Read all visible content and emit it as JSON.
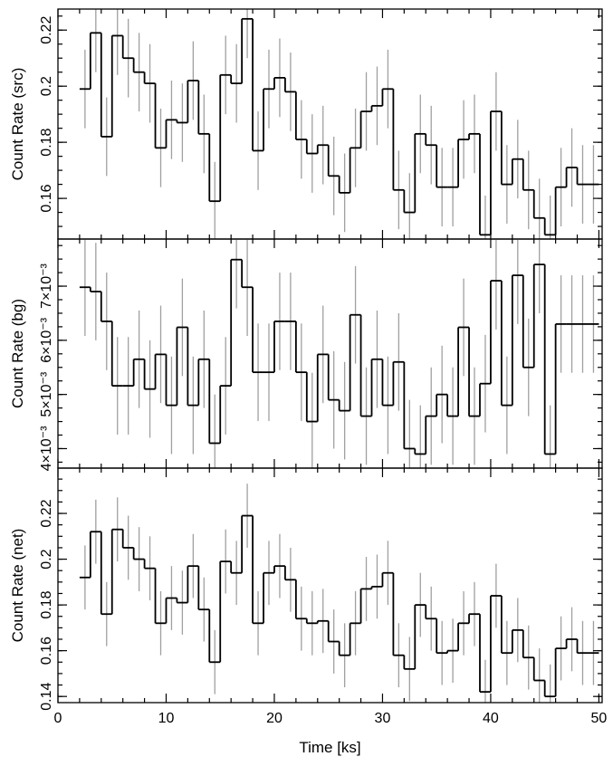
{
  "chart_data": {
    "type": "line",
    "style": "step-histogram with error bars",
    "shared_x": {
      "label": "Time [ks]",
      "range": [
        0,
        50.3
      ],
      "ticks": [
        0,
        10,
        20,
        30,
        40,
        50
      ],
      "bins": [
        [
          2,
          3
        ],
        [
          3,
          4
        ],
        [
          4,
          5
        ],
        [
          5,
          6
        ],
        [
          6,
          7
        ],
        [
          7,
          8
        ],
        [
          8,
          9
        ],
        [
          9,
          10
        ],
        [
          10,
          11
        ],
        [
          11,
          12
        ],
        [
          12,
          13
        ],
        [
          13,
          14
        ],
        [
          14,
          15
        ],
        [
          15,
          16
        ],
        [
          16,
          17
        ],
        [
          17,
          18
        ],
        [
          18,
          19
        ],
        [
          19,
          20
        ],
        [
          20,
          21
        ],
        [
          21,
          22
        ],
        [
          22,
          23
        ],
        [
          23,
          24
        ],
        [
          24,
          25
        ],
        [
          25,
          26
        ],
        [
          26,
          27
        ],
        [
          27,
          28
        ],
        [
          28,
          29
        ],
        [
          29,
          30
        ],
        [
          30,
          31
        ],
        [
          31,
          32
        ],
        [
          32,
          33
        ],
        [
          33,
          34
        ],
        [
          34,
          35
        ],
        [
          35,
          36
        ],
        [
          36,
          37
        ],
        [
          37,
          38
        ],
        [
          38,
          39
        ],
        [
          39,
          40
        ],
        [
          40,
          41
        ],
        [
          41,
          42
        ],
        [
          42,
          43
        ],
        [
          43,
          44
        ],
        [
          44,
          45
        ],
        [
          45,
          46
        ],
        [
          46,
          47
        ],
        [
          47,
          48
        ],
        [
          48,
          49
        ],
        [
          49,
          50
        ]
      ]
    },
    "panels": [
      {
        "ylabel": "Count Rate (src)",
        "ylim": [
          0.1455,
          0.2275
        ],
        "yticks": [
          0.16,
          0.18,
          0.2,
          0.22
        ],
        "ytick_labels": [
          "0.16",
          "0.18",
          "0.2",
          "0.22"
        ],
        "values": [
          0.199,
          0.219,
          0.182,
          0.218,
          0.21,
          0.205,
          0.201,
          0.178,
          0.188,
          0.187,
          0.202,
          0.183,
          0.159,
          0.204,
          0.201,
          0.224,
          0.177,
          0.199,
          0.203,
          0.198,
          0.181,
          0.176,
          0.179,
          0.168,
          0.162,
          0.178,
          0.191,
          0.193,
          0.199,
          0.163,
          0.155,
          0.183,
          0.179,
          0.164,
          0.164,
          0.181,
          0.183,
          0.147,
          0.191,
          0.165,
          0.174,
          0.163,
          0.153,
          0.147,
          0.164,
          0.171,
          0.165,
          0.165
        ],
        "errors": [
          0.014,
          0.014,
          0.014,
          0.014,
          0.014,
          0.014,
          0.014,
          0.014,
          0.014,
          0.014,
          0.014,
          0.014,
          0.014,
          0.014,
          0.014,
          0.014,
          0.014,
          0.014,
          0.014,
          0.014,
          0.014,
          0.014,
          0.014,
          0.014,
          0.014,
          0.014,
          0.014,
          0.014,
          0.014,
          0.014,
          0.014,
          0.014,
          0.014,
          0.014,
          0.014,
          0.014,
          0.014,
          0.014,
          0.014,
          0.014,
          0.014,
          0.014,
          0.014,
          0.014,
          0.014,
          0.014,
          0.014,
          0.014
        ]
      },
      {
        "ylabel": "Count Rate (bg)",
        "ylim": [
          0.00364,
          0.00787
        ],
        "yticks": [
          0.004,
          0.005,
          0.006,
          0.007
        ],
        "ytick_labels": [
          "4×10⁻³",
          "5×10⁻³",
          "6×10⁻³",
          "7×10⁻³"
        ],
        "values": [
          0.00698,
          0.0069,
          0.00635,
          0.00516,
          0.00516,
          0.00565,
          0.0051,
          0.00574,
          0.0048,
          0.00624,
          0.0048,
          0.00565,
          0.0041,
          0.00516,
          0.00749,
          0.00698,
          0.00541,
          0.00541,
          0.00635,
          0.00635,
          0.00541,
          0.0045,
          0.00574,
          0.0049,
          0.0047,
          0.00647,
          0.0046,
          0.00565,
          0.0048,
          0.0056,
          0.004,
          0.0039,
          0.0046,
          0.005,
          0.0046,
          0.00624,
          0.0046,
          0.0052,
          0.0071,
          0.0048,
          0.0072,
          0.0055,
          0.0074,
          0.0039,
          0.0063,
          0.0063,
          0.0063,
          0.0063
        ],
        "errors": [
          0.0009,
          0.0009,
          0.0009,
          0.0009,
          0.0009,
          0.0009,
          0.0009,
          0.0009,
          0.0009,
          0.0009,
          0.0009,
          0.0009,
          0.0009,
          0.0009,
          0.0009,
          0.0009,
          0.0009,
          0.0009,
          0.0009,
          0.0009,
          0.0009,
          0.0009,
          0.0009,
          0.0009,
          0.0009,
          0.0009,
          0.0009,
          0.0009,
          0.0009,
          0.0009,
          0.0009,
          0.0009,
          0.0009,
          0.0009,
          0.0009,
          0.0009,
          0.0009,
          0.0009,
          0.0009,
          0.0009,
          0.0009,
          0.0009,
          0.0009,
          0.0009,
          0.0009,
          0.0009,
          0.0009,
          0.0009
        ]
      },
      {
        "ylabel": "Count Rate (net)",
        "ylim": [
          0.1373,
          0.2398
        ],
        "yticks": [
          0.14,
          0.16,
          0.18,
          0.2,
          0.22
        ],
        "ytick_labels": [
          "0.14",
          "0.16",
          "0.18",
          "0.2",
          "0.22"
        ],
        "values": [
          0.192,
          0.212,
          0.176,
          0.213,
          0.205,
          0.2,
          0.196,
          0.172,
          0.183,
          0.181,
          0.197,
          0.178,
          0.155,
          0.199,
          0.194,
          0.219,
          0.172,
          0.194,
          0.197,
          0.191,
          0.174,
          0.172,
          0.173,
          0.164,
          0.158,
          0.172,
          0.187,
          0.188,
          0.194,
          0.158,
          0.152,
          0.18,
          0.174,
          0.159,
          0.16,
          0.172,
          0.176,
          0.142,
          0.184,
          0.159,
          0.169,
          0.157,
          0.147,
          0.14,
          0.161,
          0.165,
          0.159,
          0.159
        ],
        "errors": [
          0.014,
          0.014,
          0.014,
          0.014,
          0.014,
          0.014,
          0.014,
          0.014,
          0.014,
          0.014,
          0.014,
          0.014,
          0.014,
          0.014,
          0.014,
          0.014,
          0.014,
          0.014,
          0.014,
          0.014,
          0.014,
          0.014,
          0.014,
          0.014,
          0.014,
          0.014,
          0.014,
          0.014,
          0.014,
          0.014,
          0.014,
          0.014,
          0.014,
          0.014,
          0.014,
          0.014,
          0.014,
          0.014,
          0.014,
          0.014,
          0.014,
          0.014,
          0.014,
          0.014,
          0.014,
          0.014,
          0.014,
          0.014
        ]
      }
    ]
  }
}
